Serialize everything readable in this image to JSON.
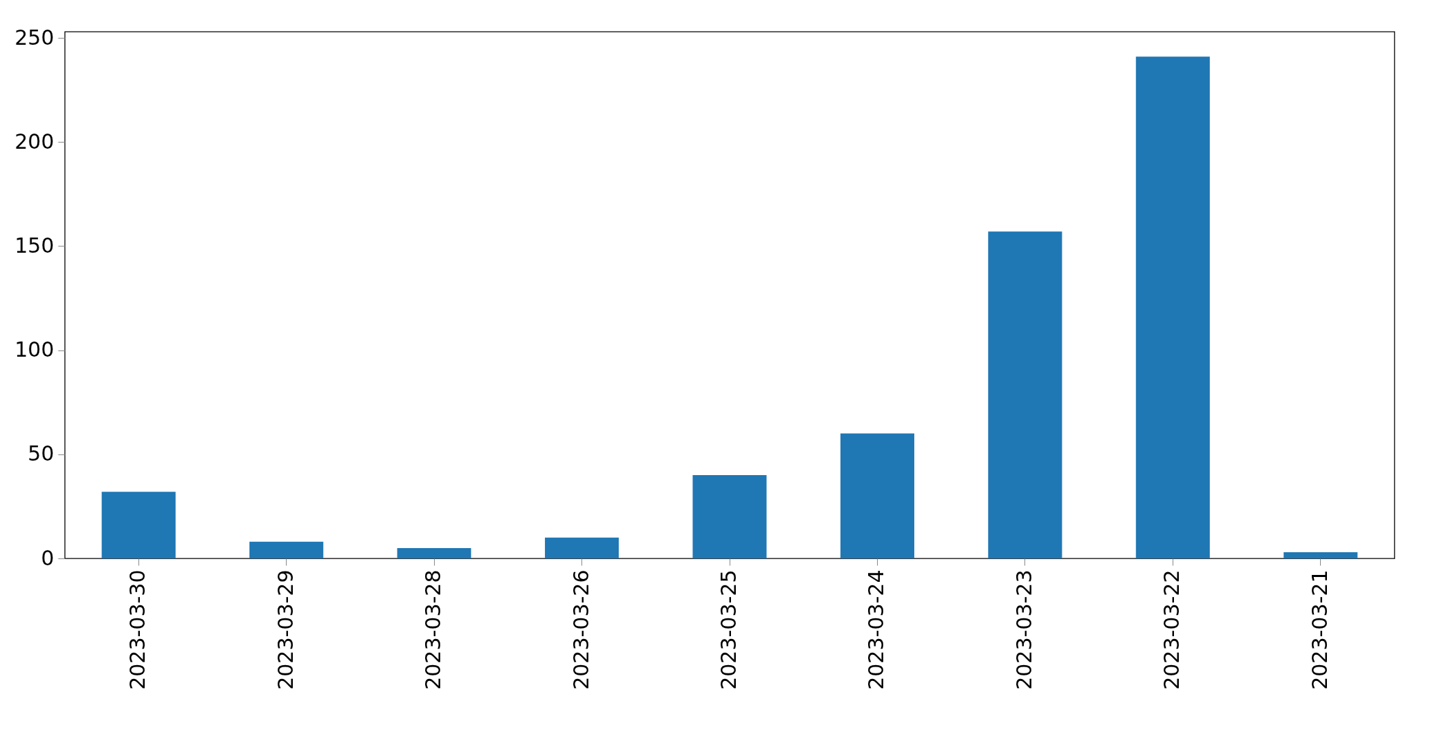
{
  "chart_data": {
    "type": "bar",
    "categories": [
      "2023-03-30",
      "2023-03-29",
      "2023-03-28",
      "2023-03-26",
      "2023-03-25",
      "2023-03-24",
      "2023-03-23",
      "2023-03-22",
      "2023-03-21"
    ],
    "values": [
      32,
      8,
      5,
      10,
      40,
      60,
      157,
      241,
      3
    ],
    "color": "#1f77b4",
    "ylim": [
      0,
      253
    ],
    "yticks": [
      0,
      50,
      100,
      150,
      200,
      250
    ],
    "grid": false
  }
}
